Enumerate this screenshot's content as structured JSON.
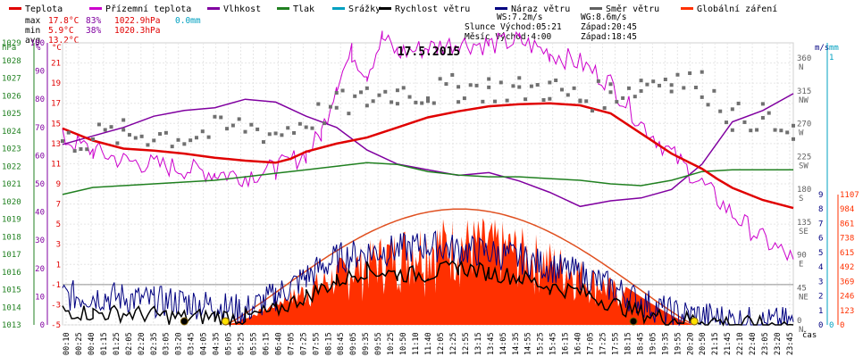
{
  "chart_data": {
    "type": "line",
    "title": "17.5.2015",
    "legend": [
      {
        "name": "Teplota",
        "color": "#e00000"
      },
      {
        "name": "Přízemní teplota",
        "color": "#cc00cc"
      },
      {
        "name": "Vlhkost",
        "color": "#8000a0"
      },
      {
        "name": "Tlak",
        "color": "#208020"
      },
      {
        "name": "Srážky",
        "color": "#00a0c0"
      },
      {
        "name": "Rychlost větru",
        "color": "#000000"
      },
      {
        "name": "Náraz větru",
        "color": "#000080"
      },
      {
        "name": "Směr větru",
        "color": "#606060"
      },
      {
        "name": "Globální záření",
        "color": "#ff3000"
      }
    ],
    "stats": {
      "max_label": "max",
      "max_temp": "17.8°C",
      "max_hum": "83%",
      "max_press": "1022.9hPa",
      "max_rain": "0.0mm",
      "min_label": "min",
      "min_temp": "5.9°C",
      "min_hum": "38%",
      "min_press": "1020.3hPa",
      "avg_label": "avg",
      "avg_temp": "13.2°C",
      "ws": "WS:7.2m/s",
      "wg": "WG:8.6m/s",
      "sun": "Slunce Východ:05:21",
      "sunset": "Západ:20:45",
      "moon": "Měsíc Východ:4:00",
      "moonset": "Západ:18:45"
    },
    "axes": {
      "hpa": {
        "unit": "hPa",
        "ticks": [
          1013,
          1014,
          1015,
          1016,
          1017,
          1018,
          1019,
          1020,
          1021,
          1022,
          1023,
          1024,
          1025,
          1026,
          1027,
          1028,
          1029
        ]
      },
      "pct": {
        "unit": "%",
        "ticks": [
          0,
          10,
          20,
          30,
          40,
          50,
          60,
          70,
          80,
          90,
          100
        ]
      },
      "degc": {
        "unit": "°C",
        "ticks": [
          -5,
          -3,
          -1,
          1,
          3,
          5,
          7,
          9,
          11,
          13,
          15,
          17,
          19,
          21
        ]
      },
      "wdir": {
        "labels": [
          "0 N",
          "45 NE",
          "90 E",
          "135 SE",
          "180 S",
          "225 SW",
          "270 W",
          "315 NW",
          "360 N"
        ]
      },
      "ms": {
        "unit": "m/s",
        "ticks": [
          0,
          1,
          2,
          3,
          4,
          5,
          6,
          7,
          8,
          9
        ]
      },
      "mm": {
        "unit": "mm",
        "ticks": [
          0,
          1
        ]
      },
      "wm2": {
        "unit": "W/m²",
        "ticks": [
          0,
          123,
          246,
          369,
          492,
          615,
          738,
          861,
          984,
          1107
        ]
      },
      "x_label": "čas",
      "time_ticks": [
        "00:10",
        "00:25",
        "00:40",
        "01:15",
        "01:25",
        "02:05",
        "02:20",
        "02:35",
        "03:05",
        "03:20",
        "03:45",
        "04:05",
        "04:35",
        "05:05",
        "05:25",
        "05:55",
        "06:15",
        "06:40",
        "07:05",
        "07:25",
        "07:55",
        "08:15",
        "08:45",
        "09:05",
        "09:35",
        "09:55",
        "10:25",
        "10:50",
        "11:10",
        "11:40",
        "12:05",
        "12:25",
        "12:55",
        "13:15",
        "13:45",
        "14:05",
        "14:35",
        "14:55",
        "15:25",
        "15:45",
        "16:15",
        "16:40",
        "17:05",
        "17:25",
        "17:55",
        "18:15",
        "18:45",
        "19:05",
        "19:35",
        "19:55",
        "20:20",
        "20:50",
        "21:15",
        "21:45",
        "22:10",
        "22:40",
        "23:05",
        "23:20",
        "23:45"
      ]
    },
    "series": {
      "teplota": [
        [
          0,
          14.5
        ],
        [
          1,
          13.3
        ],
        [
          2,
          12.5
        ],
        [
          3,
          12.3
        ],
        [
          4,
          12.0
        ],
        [
          5,
          11.6
        ],
        [
          6,
          11.3
        ],
        [
          7,
          11.1
        ],
        [
          7.5,
          11.5
        ],
        [
          8,
          12.2
        ],
        [
          9,
          13.0
        ],
        [
          10,
          13.6
        ],
        [
          11,
          14.6
        ],
        [
          12,
          15.6
        ],
        [
          13,
          16.2
        ],
        [
          14,
          16.7
        ],
        [
          15,
          16.9
        ],
        [
          16,
          17.0
        ],
        [
          17,
          16.8
        ],
        [
          18,
          16.0
        ],
        [
          19,
          14.0
        ],
        [
          20,
          12.0
        ],
        [
          21,
          10.5
        ],
        [
          21.5,
          9.5
        ],
        [
          22,
          8.6
        ],
        [
          23,
          7.4
        ],
        [
          24,
          6.6
        ]
      ],
      "prizemni": [
        [
          0,
          13.5
        ],
        [
          1,
          12.3
        ],
        [
          2,
          11.3
        ],
        [
          3,
          10.9
        ],
        [
          4,
          10.5
        ],
        [
          5,
          10.1
        ],
        [
          6,
          9.8
        ],
        [
          7,
          10.5
        ],
        [
          8,
          12.0
        ],
        [
          8.5,
          14.0
        ],
        [
          9,
          19.0
        ],
        [
          9.5,
          22.0
        ],
        [
          10,
          20.0
        ],
        [
          10.5,
          23.5
        ],
        [
          11,
          22.0
        ],
        [
          12,
          22.5
        ],
        [
          13,
          23.0
        ],
        [
          14,
          22.8
        ],
        [
          15,
          23.2
        ],
        [
          16,
          22.0
        ],
        [
          17,
          21.0
        ],
        [
          18,
          19.0
        ],
        [
          19,
          15.0
        ],
        [
          20,
          12.0
        ],
        [
          21,
          9.0
        ],
        [
          22,
          6.0
        ],
        [
          23,
          3.5
        ],
        [
          24,
          1.5
        ]
      ],
      "vlhkost": [
        [
          0,
          64
        ],
        [
          1,
          67
        ],
        [
          2,
          70
        ],
        [
          3,
          74
        ],
        [
          4,
          76
        ],
        [
          5,
          77
        ],
        [
          6,
          80
        ],
        [
          7,
          79
        ],
        [
          8,
          74
        ],
        [
          9,
          70
        ],
        [
          10,
          62
        ],
        [
          11,
          57
        ],
        [
          12,
          55
        ],
        [
          13,
          53
        ],
        [
          14,
          54
        ],
        [
          15,
          51
        ],
        [
          16,
          47
        ],
        [
          17,
          42
        ],
        [
          18,
          44
        ],
        [
          19,
          45
        ],
        [
          20,
          48
        ],
        [
          21,
          57
        ],
        [
          22,
          72
        ],
        [
          23,
          76
        ],
        [
          24,
          82
        ]
      ],
      "tlak": [
        [
          0,
          1020.4
        ],
        [
          1,
          1020.8
        ],
        [
          2,
          1020.9
        ],
        [
          3,
          1021.0
        ],
        [
          4,
          1021.1
        ],
        [
          5,
          1021.2
        ],
        [
          6,
          1021.4
        ],
        [
          7,
          1021.6
        ],
        [
          8,
          1021.8
        ],
        [
          9,
          1022.0
        ],
        [
          10,
          1022.2
        ],
        [
          11,
          1022.1
        ],
        [
          12,
          1021.7
        ],
        [
          13,
          1021.5
        ],
        [
          14,
          1021.4
        ],
        [
          15,
          1021.4
        ],
        [
          16,
          1021.3
        ],
        [
          17,
          1021.2
        ],
        [
          18,
          1021.0
        ],
        [
          19,
          1020.9
        ],
        [
          20,
          1021.2
        ],
        [
          21,
          1021.7
        ],
        [
          22,
          1021.8
        ],
        [
          23,
          1021.8
        ],
        [
          24,
          1021.8
        ]
      ],
      "rychlost": [
        [
          0,
          1.0
        ],
        [
          1,
          0.8
        ],
        [
          2,
          0.8
        ],
        [
          3,
          0.7
        ],
        [
          4,
          0.5
        ],
        [
          5,
          0.6
        ],
        [
          6,
          0.5
        ],
        [
          7,
          1.0
        ],
        [
          8,
          2.0
        ],
        [
          9,
          3.0
        ],
        [
          10,
          3.8
        ],
        [
          11,
          3.5
        ],
        [
          12,
          3.5
        ],
        [
          13,
          4.0
        ],
        [
          14,
          3.6
        ],
        [
          15,
          3.3
        ],
        [
          16,
          2.6
        ],
        [
          17,
          2.3
        ],
        [
          18,
          1.5
        ],
        [
          19,
          0.8
        ],
        [
          20,
          0.4
        ],
        [
          21,
          0.4
        ],
        [
          22,
          0.1
        ],
        [
          23,
          0.0
        ],
        [
          24,
          0.0
        ]
      ],
      "naraz": [
        [
          0,
          2.0
        ],
        [
          1,
          2.0
        ],
        [
          2,
          1.9
        ],
        [
          3,
          1.6
        ],
        [
          4,
          1.6
        ],
        [
          5,
          1.3
        ],
        [
          6,
          1.0
        ],
        [
          7,
          2.0
        ],
        [
          8,
          3.3
        ],
        [
          9,
          4.6
        ],
        [
          10,
          5.0
        ],
        [
          11,
          5.2
        ],
        [
          12,
          5.5
        ],
        [
          13,
          5.2
        ],
        [
          14,
          5.0
        ],
        [
          15,
          4.6
        ],
        [
          16,
          4.0
        ],
        [
          17,
          3.5
        ],
        [
          18,
          2.6
        ],
        [
          19,
          1.6
        ],
        [
          20,
          0.8
        ],
        [
          21,
          0.6
        ],
        [
          22,
          0.3
        ],
        [
          23,
          0.1
        ],
        [
          24,
          0.2
        ]
      ],
      "smer": [
        [
          0,
          250
        ],
        [
          1,
          258
        ],
        [
          2,
          262
        ],
        [
          3,
          262
        ],
        [
          4,
          258
        ],
        [
          5,
          266
        ],
        [
          6,
          273
        ],
        [
          7,
          262
        ],
        [
          8,
          280
        ],
        [
          9,
          300
        ],
        [
          10,
          310
        ],
        [
          11,
          320
        ],
        [
          12,
          318
        ],
        [
          13,
          325
        ],
        [
          14,
          325
        ],
        [
          15,
          322
        ],
        [
          16,
          325
        ],
        [
          17,
          310
        ],
        [
          18,
          318
        ],
        [
          19,
          330
        ],
        [
          20,
          340
        ],
        [
          21,
          330
        ],
        [
          22,
          285
        ],
        [
          23,
          285
        ],
        [
          24,
          255
        ]
      ],
      "zareni_max": 984,
      "sunrise_h": 5.35,
      "sunset_h": 20.75,
      "moonrise_h": 4.0,
      "moonset_h": 18.75
    }
  }
}
